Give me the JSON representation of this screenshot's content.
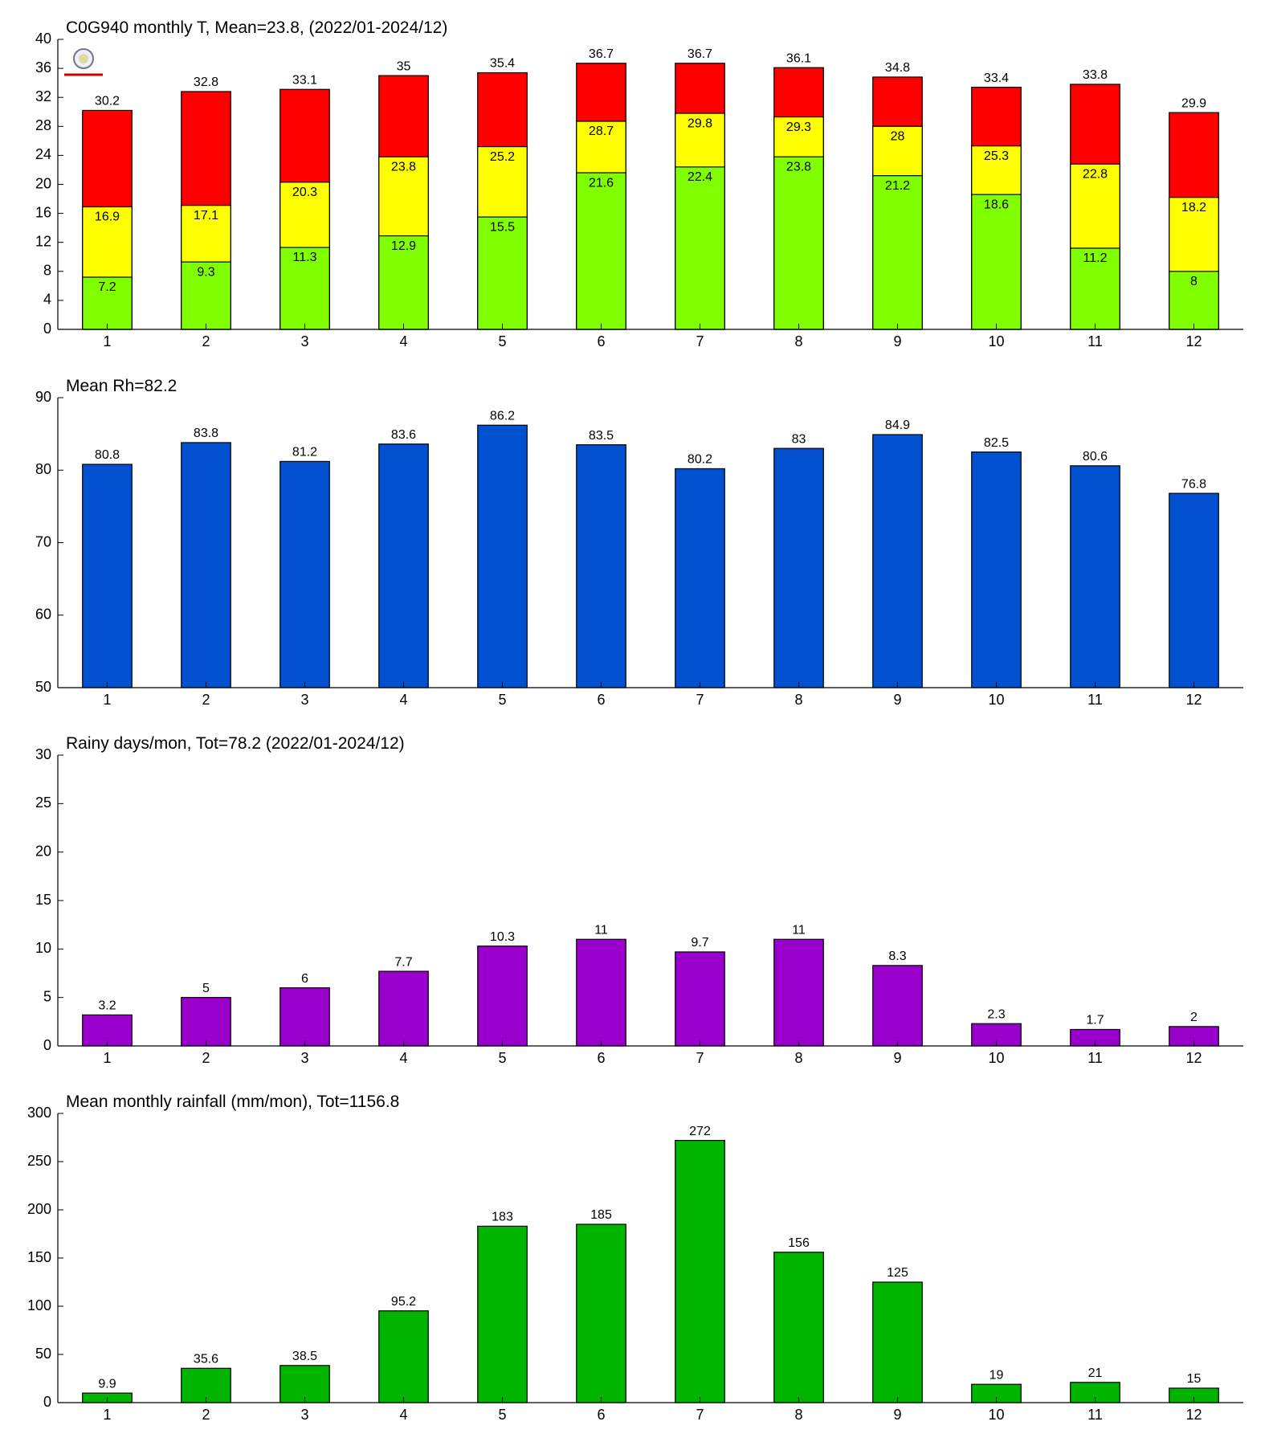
{
  "chart_data": [
    {
      "type": "bar",
      "title": "C0G940 monthly T, Mean=23.8, (2022/01-2024/12)",
      "categories": [
        "1",
        "2",
        "3",
        "4",
        "5",
        "6",
        "7",
        "8",
        "9",
        "10",
        "11",
        "12"
      ],
      "series": [
        {
          "color": "#ff0000",
          "values": [
            30.2,
            32.8,
            33.1,
            35,
            35.4,
            36.7,
            36.7,
            36.1,
            34.8,
            33.4,
            33.8,
            29.9
          ]
        },
        {
          "color": "#ffff00",
          "values": [
            16.9,
            17.1,
            20.3,
            23.8,
            25.2,
            28.7,
            29.8,
            29.3,
            28,
            25.3,
            22.8,
            18.2
          ]
        },
        {
          "color": "#80ff00",
          "values": [
            7.2,
            9.3,
            11.3,
            12.9,
            15.5,
            21.6,
            22.4,
            23.8,
            21.2,
            18.6,
            11.2,
            8
          ]
        }
      ],
      "ylim": [
        0,
        40
      ],
      "yticks": [
        0,
        4,
        8,
        12,
        16,
        20,
        24,
        28,
        32,
        36,
        40
      ]
    },
    {
      "type": "bar",
      "title": "Mean Rh=82.2",
      "categories": [
        "1",
        "2",
        "3",
        "4",
        "5",
        "6",
        "7",
        "8",
        "9",
        "10",
        "11",
        "12"
      ],
      "values": [
        80.8,
        83.8,
        81.2,
        83.6,
        86.2,
        83.5,
        80.2,
        83,
        84.9,
        82.5,
        80.6,
        76.8
      ],
      "color": "#0050d0",
      "ylim": [
        50,
        90
      ],
      "yticks": [
        50,
        60,
        70,
        80,
        90
      ]
    },
    {
      "type": "bar",
      "title": "Rainy days/mon, Tot=78.2 (2022/01-2024/12)",
      "categories": [
        "1",
        "2",
        "3",
        "4",
        "5",
        "6",
        "7",
        "8",
        "9",
        "10",
        "11",
        "12"
      ],
      "values": [
        3.2,
        5,
        6,
        7.7,
        10.3,
        11,
        9.7,
        11,
        8.3,
        2.3,
        1.7,
        2
      ],
      "color": "#9900cc",
      "ylim": [
        0,
        30
      ],
      "yticks": [
        0,
        5,
        10,
        15,
        20,
        25,
        30
      ]
    },
    {
      "type": "bar",
      "title": "Mean monthly rainfall (mm/mon), Tot=1156.8",
      "categories": [
        "1",
        "2",
        "3",
        "4",
        "5",
        "6",
        "7",
        "8",
        "9",
        "10",
        "11",
        "12"
      ],
      "values": [
        9.9,
        35.6,
        38.5,
        95.2,
        183,
        185,
        272,
        156,
        125,
        19,
        21,
        15
      ],
      "color": "#00b400",
      "ylim": [
        0,
        300
      ],
      "yticks": [
        0,
        50,
        100,
        150,
        200,
        250,
        300
      ]
    }
  ]
}
